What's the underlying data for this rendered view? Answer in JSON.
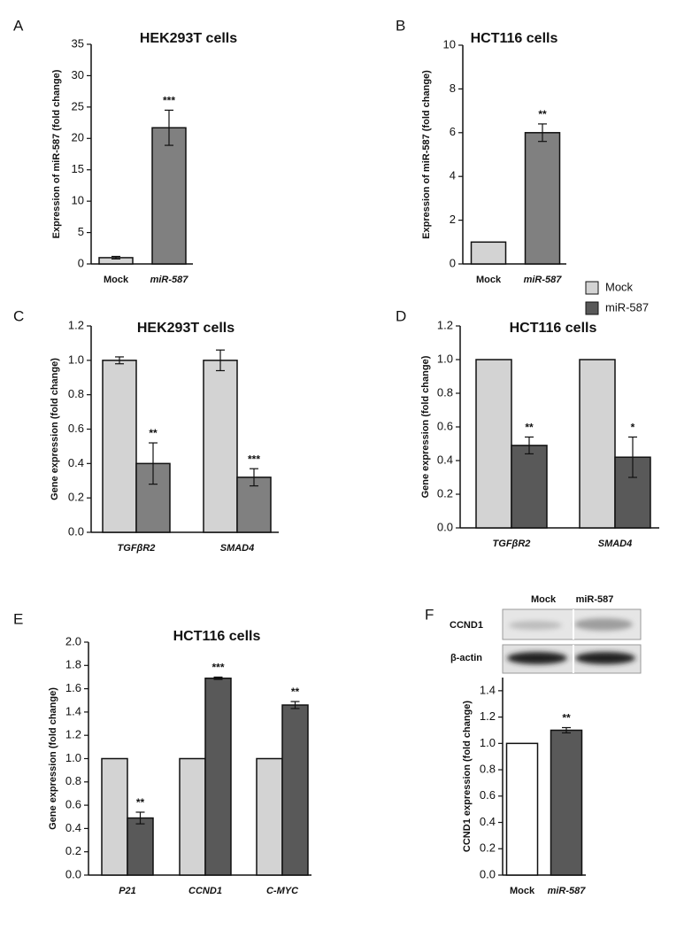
{
  "chart_data": [
    {
      "type": "bar",
      "panel_label": "A",
      "title": "HEK293T cells",
      "y_label": "Expression of miR-587 (fold change)",
      "categories": [
        "Mock",
        "miR-587"
      ],
      "category_italic": [
        false,
        true
      ],
      "values": [
        1,
        21.7
      ],
      "errors": [
        0.2,
        2.8
      ],
      "colors": [
        "#d3d3d3",
        "#808080"
      ],
      "significance": [
        null,
        "***"
      ],
      "ylim": [
        0,
        35
      ],
      "yticks": [
        0,
        5,
        10,
        15,
        20,
        25,
        30,
        35
      ]
    },
    {
      "type": "bar",
      "panel_label": "B",
      "title": "HCT116 cells",
      "y_label": "Expression of miR-587 (fold change)",
      "categories": [
        "Mock",
        "miR-587"
      ],
      "category_italic": [
        false,
        true
      ],
      "values": [
        1,
        6.0
      ],
      "errors": [
        null,
        0.4
      ],
      "colors": [
        "#d3d3d3",
        "#808080"
      ],
      "significance": [
        null,
        "**"
      ],
      "ylim": [
        0,
        10
      ],
      "yticks": [
        0,
        2,
        4,
        6,
        8,
        10
      ]
    },
    {
      "type": "bar",
      "panel_label": "C",
      "title": "HEK293T cells",
      "y_label": "Gene expression (fold change)",
      "categories": [
        "TGFβR2",
        "SMAD4"
      ],
      "series": [
        {
          "name": "Mock",
          "color": "#d3d3d3",
          "values": [
            1.0,
            1.0
          ],
          "errors": [
            0.02,
            0.06
          ]
        },
        {
          "name": "miR-587",
          "color": "#808080",
          "values": [
            0.4,
            0.32
          ],
          "errors": [
            0.12,
            0.05
          ],
          "significance": [
            "**",
            "***"
          ]
        }
      ],
      "ylim": [
        0,
        1.2
      ],
      "yticks": [
        {
          "value": 0,
          "label": "0.0"
        },
        0.2,
        0.4,
        0.6,
        0.8,
        {
          "value": 1,
          "label": "1.0"
        },
        1.2
      ]
    },
    {
      "type": "bar",
      "panel_label": "D",
      "title": "HCT116 cells",
      "y_label": "Gene expression (fold change)",
      "categories": [
        "TGFβR2",
        "SMAD4"
      ],
      "series": [
        {
          "name": "Mock",
          "color": "#d3d3d3",
          "values": [
            1.0,
            1.0
          ]
        },
        {
          "name": "miR-587",
          "color": "#595959",
          "values": [
            0.49,
            0.42
          ],
          "errors": [
            0.05,
            0.12
          ],
          "significance": [
            "**",
            "*"
          ]
        }
      ],
      "ylim": [
        0,
        1.2
      ],
      "yticks": [
        {
          "value": 0,
          "label": "0.0"
        },
        0.2,
        0.4,
        0.6,
        0.8,
        {
          "value": 1,
          "label": "1.0"
        },
        1.2
      ]
    },
    {
      "type": "bar",
      "panel_label": "E",
      "title": "HCT116 cells",
      "y_label": "Gene expression (fold change)",
      "categories": [
        "P21",
        "CCND1",
        "C-MYC"
      ],
      "series": [
        {
          "name": "Mock",
          "color": "#d3d3d3",
          "values": [
            1.0,
            1.0,
            1.0
          ]
        },
        {
          "name": "miR-587",
          "color": "#595959",
          "values": [
            0.49,
            1.69,
            1.46
          ],
          "errors": [
            0.05,
            0.01,
            0.03
          ],
          "significance": [
            "**",
            "***",
            "**"
          ]
        }
      ],
      "ylim": [
        0,
        2.0
      ],
      "yticks": [
        {
          "value": 0,
          "label": "0.0"
        },
        0.2,
        0.4,
        0.6,
        0.8,
        {
          "value": 1,
          "label": "1.0"
        },
        1.2,
        1.4,
        1.6,
        1.8,
        {
          "value": 2,
          "label": "2.0"
        }
      ]
    },
    {
      "type": "bar",
      "panel_label": "F",
      "y_label": "CCND1 expression (fold change)",
      "categories": [
        "Mock",
        "miR-587"
      ],
      "category_italic": [
        false,
        true
      ],
      "values": [
        1.0,
        1.1
      ],
      "errors": [
        null,
        0.02
      ],
      "colors": [
        "#ffffff",
        "#595959"
      ],
      "significance": [
        null,
        "**"
      ],
      "ylim": [
        0,
        1.5
      ],
      "yticks": [
        {
          "value": 0,
          "label": "0.0"
        },
        0.2,
        0.4,
        0.6,
        0.8,
        {
          "value": 1,
          "label": "1.0"
        },
        1.2,
        1.4
      ]
    }
  ],
  "blot": {
    "columns": [
      "Mock",
      "miR-587"
    ],
    "rows": [
      "CCND1",
      "β-actin"
    ]
  }
}
